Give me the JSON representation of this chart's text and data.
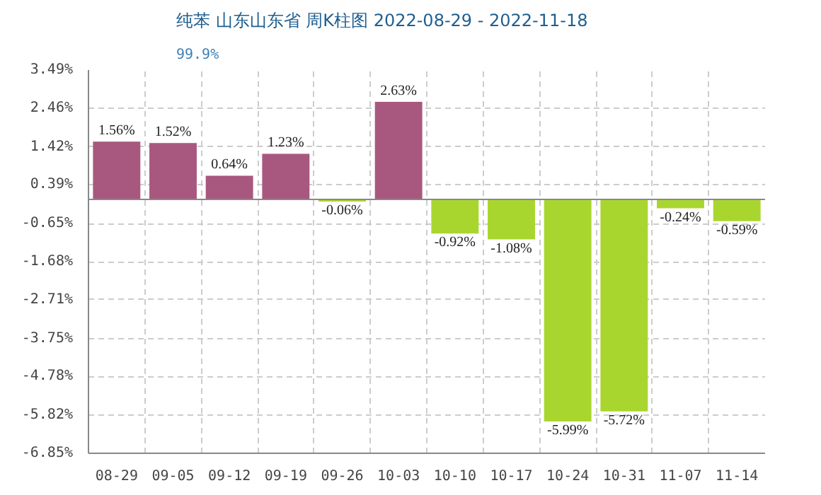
{
  "chart_data": {
    "type": "bar",
    "title": "纯苯 山东山东省 周K柱图 2022-08-29 - 2022-11-18",
    "subtitle": "99.9%",
    "categories": [
      "08-29",
      "09-05",
      "09-12",
      "09-19",
      "09-26",
      "10-03",
      "10-10",
      "10-17",
      "10-24",
      "10-31",
      "11-07",
      "11-14"
    ],
    "values": [
      1.56,
      1.52,
      0.64,
      1.23,
      -0.06,
      2.63,
      -0.92,
      -1.08,
      -5.99,
      -5.72,
      -0.24,
      -0.59
    ],
    "colors": [
      "#a8587f",
      "#a8587f",
      "#a8587f",
      "#a8587f",
      "#a9d62e",
      "#a8587f",
      "#a9d62e",
      "#a9d62e",
      "#a9d62e",
      "#a9d62e",
      "#a9d62e",
      "#a9d62e"
    ],
    "value_labels": [
      "1.56%",
      "1.52%",
      "0.64%",
      "1.23%",
      "-0.06%",
      "2.63%",
      "-0.92%",
      "-1.08%",
      "-5.99%",
      "-5.72%",
      "-0.24%",
      "-0.59%"
    ],
    "ylim": [
      -6.85,
      3.49
    ],
    "yticks": [
      {
        "value": -6.85,
        "label": "-6.85%"
      },
      {
        "value": -5.82,
        "label": "-5.82%"
      },
      {
        "value": -4.78,
        "label": "-4.78%"
      },
      {
        "value": -3.75,
        "label": "-3.75%"
      },
      {
        "value": -2.71,
        "label": "-2.71%"
      },
      {
        "value": -1.68,
        "label": "-1.68%"
      },
      {
        "value": -0.65,
        "label": "-0.65%"
      },
      {
        "value": 0.39,
        "label": "0.39%"
      },
      {
        "value": 1.42,
        "label": "1.42%"
      },
      {
        "value": 2.46,
        "label": "2.46%"
      },
      {
        "value": 3.49,
        "label": "3.49%"
      }
    ],
    "grid": true
  }
}
